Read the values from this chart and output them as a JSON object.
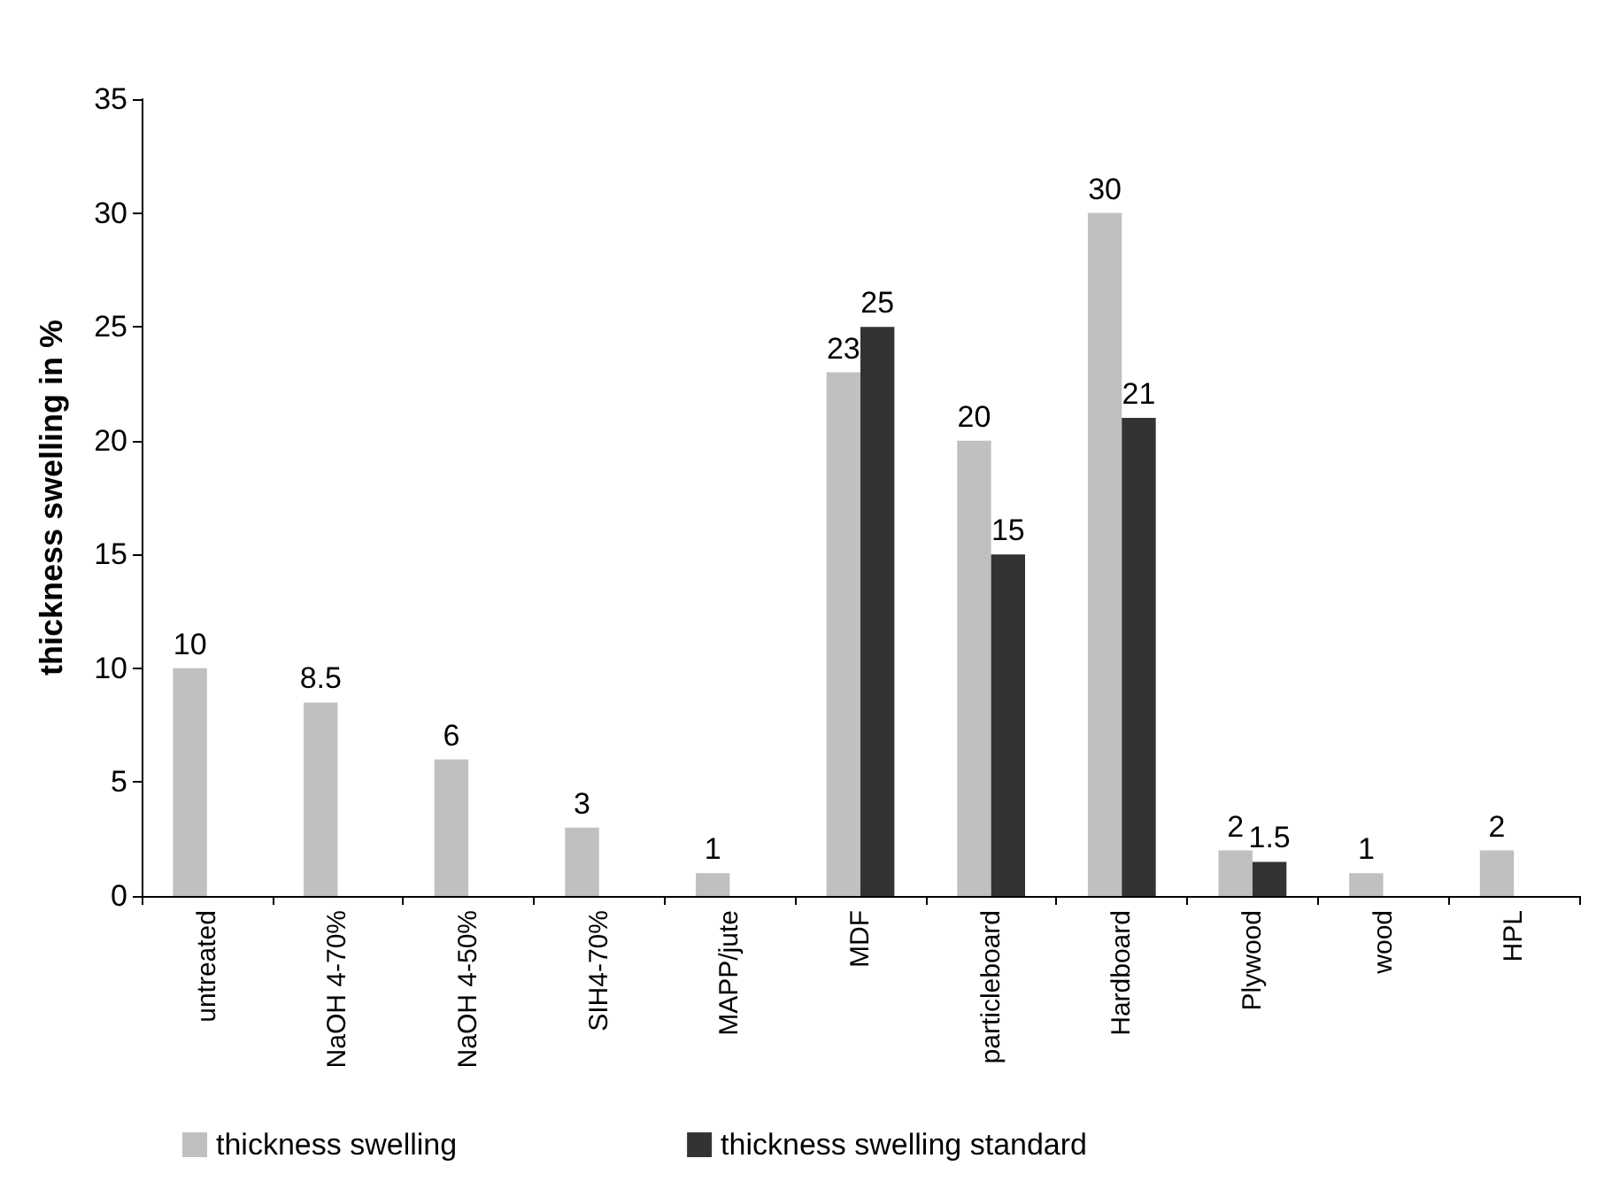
{
  "chart_data": {
    "type": "bar",
    "ylabel": "thickness swelling in %",
    "categories": [
      "untreated",
      "NaOH 4-70%",
      "NaOH 4-50%",
      "SIH4-70%",
      "MAPP/jute",
      "MDF",
      "particleboard",
      "Hardboard",
      "Plywood",
      "wood",
      "HPL"
    ],
    "series": [
      {
        "name": "thickness swelling",
        "color": "#c0c0c0",
        "values": [
          10,
          8.5,
          6,
          3,
          1,
          23,
          20,
          30,
          2,
          1,
          2
        ]
      },
      {
        "name": "thickness swelling standard",
        "color": "#333333",
        "values": [
          null,
          null,
          null,
          null,
          null,
          25,
          15,
          21,
          1.5,
          null,
          null
        ]
      }
    ],
    "ylim": [
      0,
      35
    ],
    "yticks": [
      0,
      5,
      10,
      15,
      20,
      25,
      30,
      35
    ],
    "grid": false,
    "legend": "bottom",
    "data_labels": true
  }
}
